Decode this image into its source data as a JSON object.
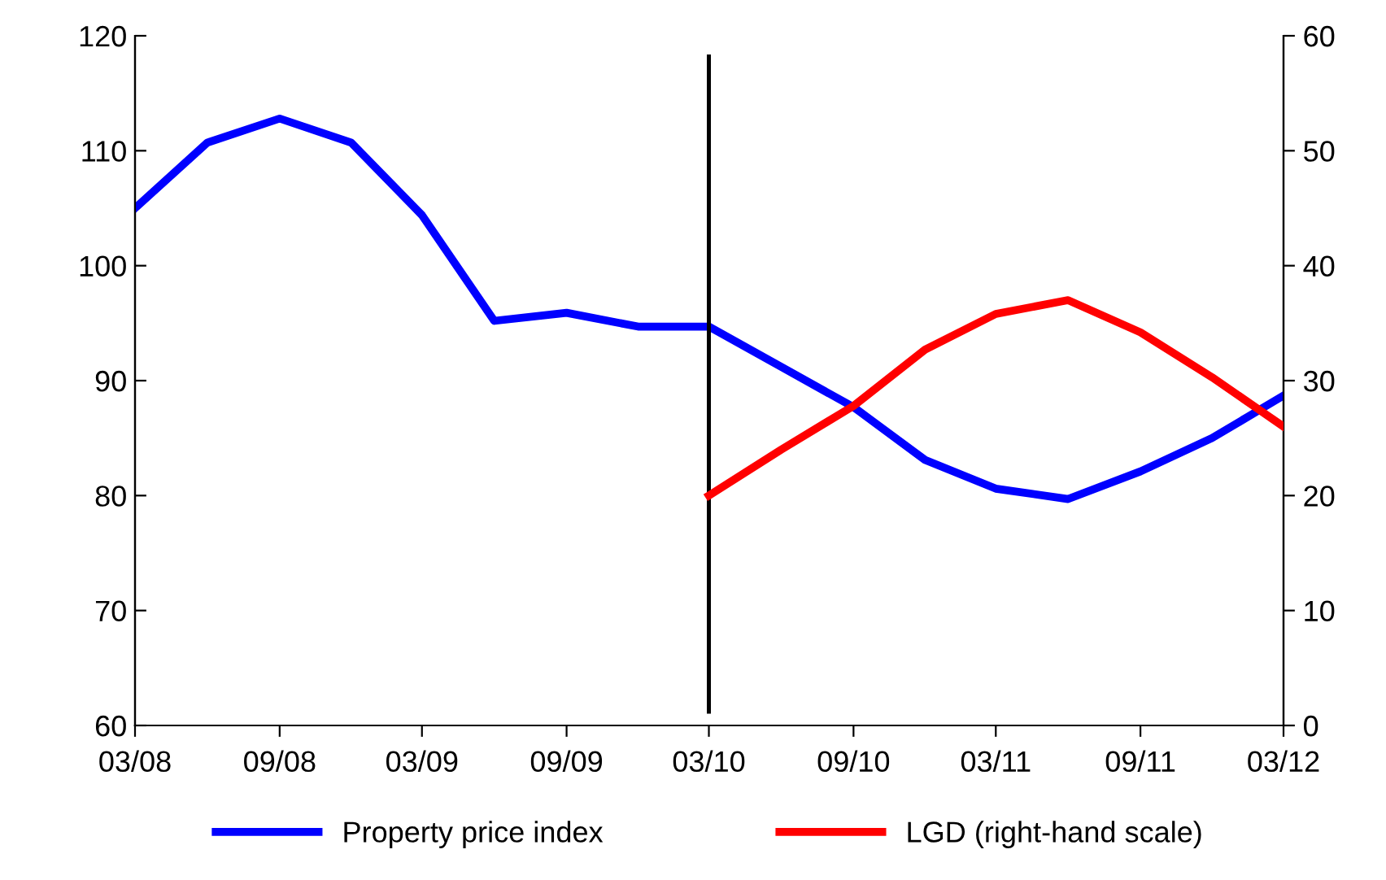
{
  "chart_data": {
    "type": "line",
    "x": [
      "2008-03",
      "2008-06",
      "2008-09",
      "2008-12",
      "2009-03",
      "2009-06",
      "2009-09",
      "2009-12",
      "2010-03",
      "2010-06",
      "2010-09",
      "2010-12",
      "2011-03",
      "2011-06",
      "2011-09",
      "2011-12",
      "2012-03"
    ],
    "series": [
      {
        "name": "Property price index",
        "color": "#0000ff",
        "values": [
          105,
          110.7,
          112.8,
          110.7,
          104.4,
          95.2,
          95.9,
          94.7,
          94.7,
          91.2,
          87.7,
          83.1,
          80.6,
          79.7,
          82.1,
          85.0,
          88.7
        ]
      },
      {
        "name": "LGD (right-hand scale)",
        "color": "#ff0000",
        "axis": "y2",
        "values": [
          null,
          null,
          null,
          null,
          null,
          null,
          null,
          null,
          20,
          24,
          27.8,
          32.7,
          35.8,
          37,
          34.2,
          30.3,
          26
        ]
      }
    ],
    "xlim": [
      "2008-03",
      "2012-03"
    ],
    "xticks": [
      {
        "value": "2008-03",
        "label": "03/08"
      },
      {
        "value": "2008-09",
        "label": "09/08"
      },
      {
        "value": "2009-03",
        "label": "03/09"
      },
      {
        "value": "2009-09",
        "label": "09/09"
      },
      {
        "value": "2010-03",
        "label": "03/10"
      },
      {
        "value": "2010-09",
        "label": "09/10"
      },
      {
        "value": "2011-03",
        "label": "03/11"
      },
      {
        "value": "2011-09",
        "label": "09/11"
      },
      {
        "value": "2012-03",
        "label": "03/12"
      }
    ],
    "ylim": [
      60,
      120
    ],
    "yticks": [
      60,
      70,
      80,
      90,
      100,
      110,
      120
    ],
    "y2lim": [
      0,
      60
    ],
    "y2ticks": [
      0,
      10,
      20,
      30,
      40,
      50,
      60
    ],
    "ref_lines": [
      {
        "axis": "x",
        "value": "2010-03",
        "color": "#000000"
      }
    ],
    "legend": "bottom",
    "grid": false,
    "marker": "none",
    "line_style": "solid"
  }
}
